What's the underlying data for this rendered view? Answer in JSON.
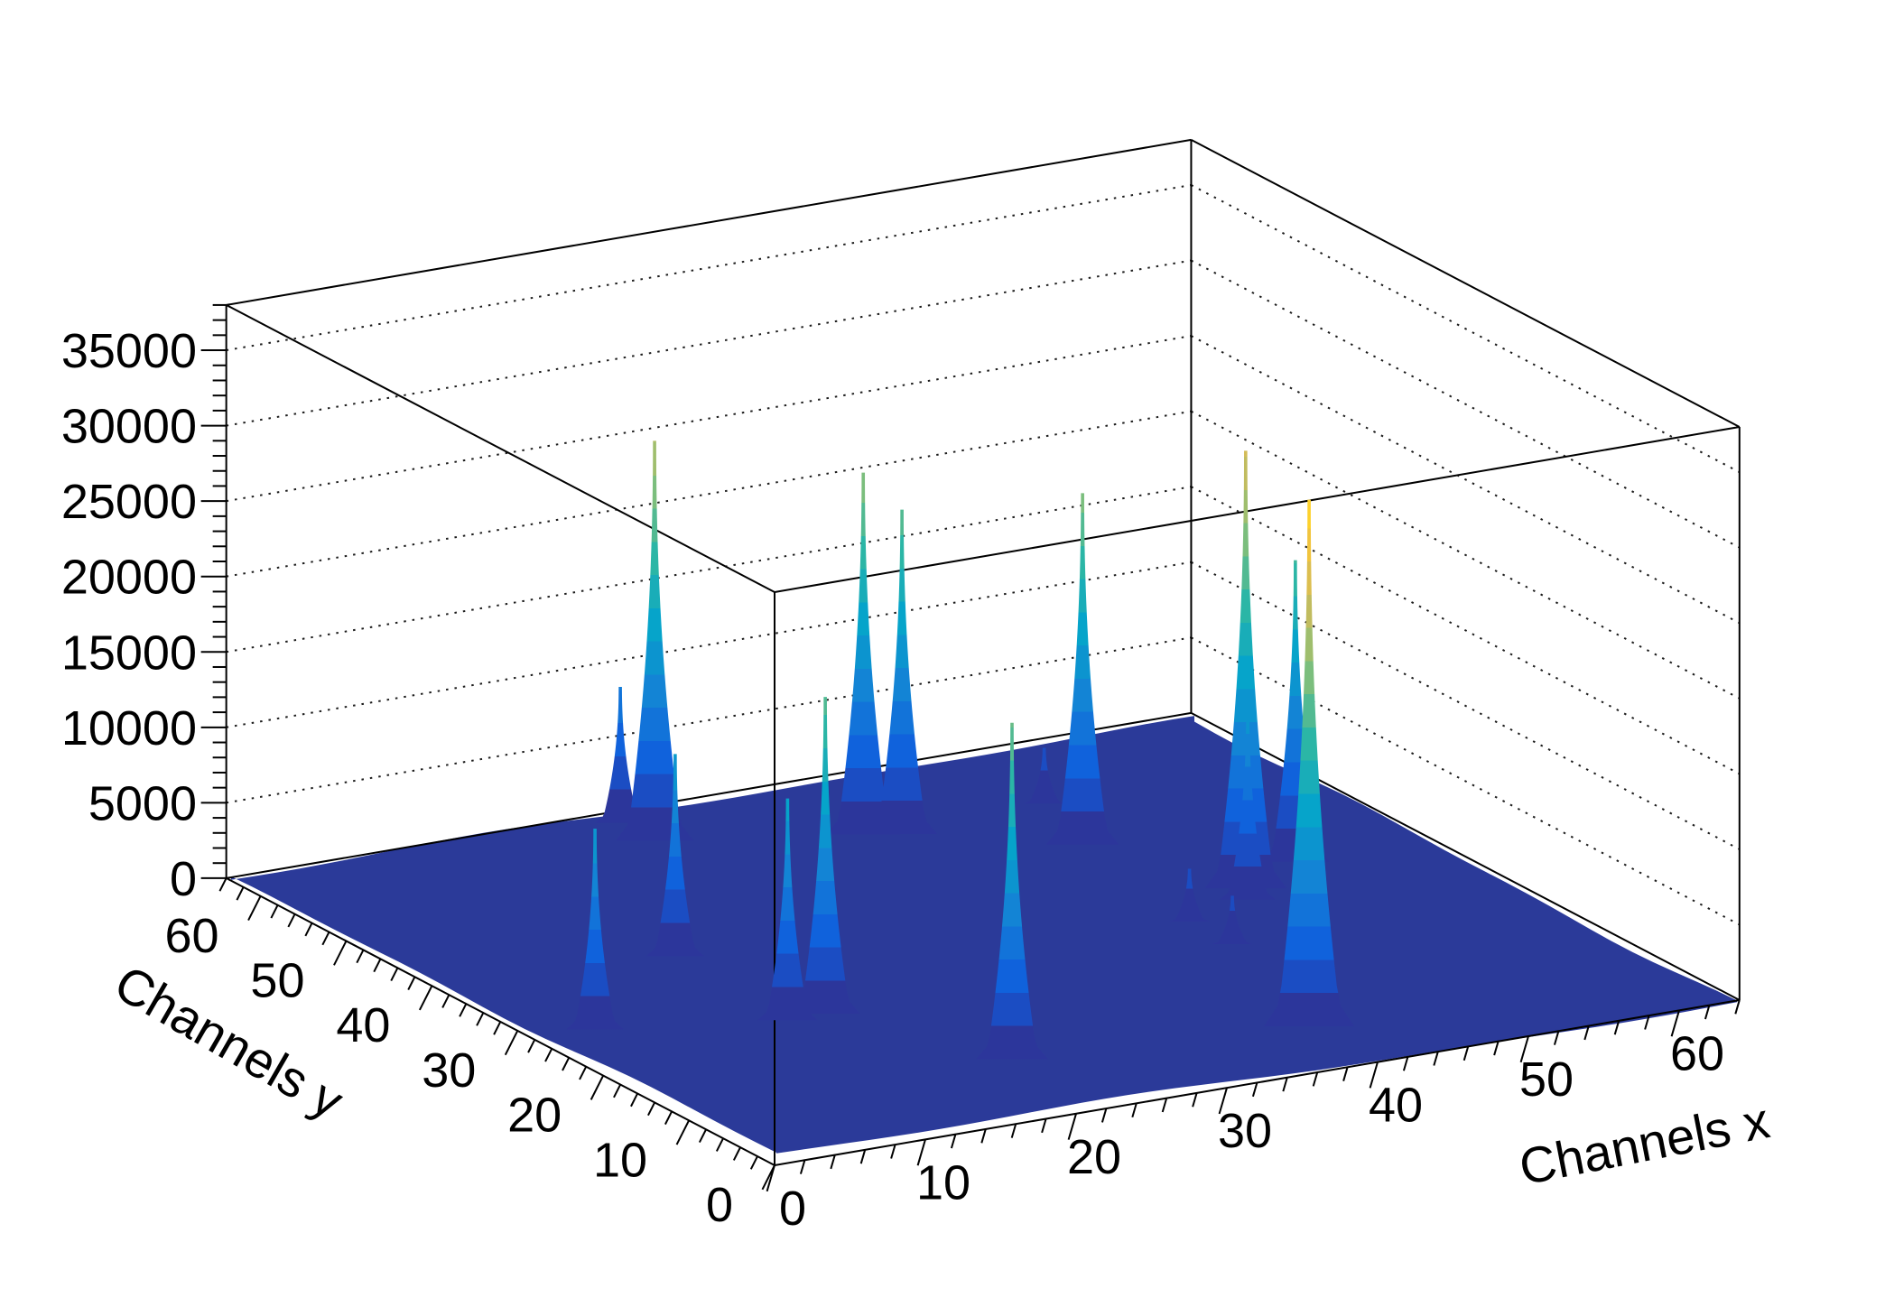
{
  "figure": {
    "kind": "3D surface histogram (ROOT TH2 SURF2 style)",
    "background": "#ffffff"
  },
  "axes": {
    "x": {
      "title": "Channels x",
      "ticks": [
        0,
        10,
        20,
        30,
        40,
        50,
        60
      ],
      "tick_labels": [
        "0",
        "10",
        "20",
        "30",
        "40",
        "50",
        "60"
      ],
      "range": [
        0,
        64
      ],
      "minor_step": 2
    },
    "y": {
      "title": "Channels y",
      "ticks": [
        0,
        10,
        20,
        30,
        40,
        50,
        60
      ],
      "tick_labels": [
        "0",
        "10",
        "20",
        "30",
        "40",
        "50",
        "60"
      ],
      "range": [
        0,
        64
      ],
      "minor_step": 2
    },
    "z": {
      "title": "",
      "ticks": [
        0,
        5000,
        10000,
        15000,
        20000,
        25000,
        30000,
        35000
      ],
      "tick_labels": [
        "0",
        "5000",
        "10000",
        "15000",
        "20000",
        "25000",
        "30000",
        "35000"
      ],
      "range": [
        0,
        38000
      ],
      "minor_step": 1000,
      "grid_step": 5000
    }
  },
  "chart_data": {
    "type": "surface3d",
    "title": "",
    "xlabel": "Channels x",
    "ylabel": "Channels y",
    "x_range": [
      0,
      64
    ],
    "y_range": [
      0,
      64
    ],
    "z_range": [
      0,
      38000
    ],
    "grid": "dotted z gridlines every 5000 on the two back walls",
    "legend": "none",
    "bins": {
      "nx": 64,
      "ny": 64
    },
    "background_level": 300,
    "peaks": [
      {
        "x": 25,
        "y": 58,
        "z": 26500
      },
      {
        "x": 15,
        "y": 38,
        "z": 13400
      },
      {
        "x": 4,
        "y": 28,
        "z": 13300
      },
      {
        "x": 14.5,
        "y": 24,
        "z": 14700
      },
      {
        "x": 17,
        "y": 24,
        "z": 21000
      },
      {
        "x": 36,
        "y": 53,
        "z": 24000
      },
      {
        "x": 38,
        "y": 52,
        "z": 21500
      },
      {
        "x": 22,
        "y": 11,
        "z": 22300
      },
      {
        "x": 46,
        "y": 45,
        "z": 23300
      },
      {
        "x": 48,
        "y": 53,
        "z": 3700
      },
      {
        "x": 50,
        "y": 33,
        "z": 29000
      },
      {
        "x": 40,
        "y": 8,
        "z": 34900
      },
      {
        "x": 55,
        "y": 36,
        "z": 20000
      },
      {
        "x": 49,
        "y": 31,
        "z": 12300
      },
      {
        "x": 25,
        "y": 62,
        "z": 9000
      },
      {
        "x": 44,
        "y": 29,
        "z": 3500
      },
      {
        "x": 44,
        "y": 24,
        "z": 3200
      }
    ],
    "palette_stops": [
      {
        "pos": 0.0,
        "color": "#352a87"
      },
      {
        "pos": 0.125,
        "color": "#0f5cdd"
      },
      {
        "pos": 0.25,
        "color": "#1481d6"
      },
      {
        "pos": 0.375,
        "color": "#06a4ca"
      },
      {
        "pos": 0.5,
        "color": "#2eb7a4"
      },
      {
        "pos": 0.625,
        "color": "#87bf77"
      },
      {
        "pos": 0.75,
        "color": "#d1bb59"
      },
      {
        "pos": 0.875,
        "color": "#fec832"
      },
      {
        "pos": 1.0,
        "color": "#f9fb0e"
      }
    ],
    "surface_base_color": "#2b3a99"
  },
  "colors": {
    "frame": "#000000",
    "grid": "#1c1c1c",
    "text": "#000000",
    "background": "#ffffff"
  }
}
